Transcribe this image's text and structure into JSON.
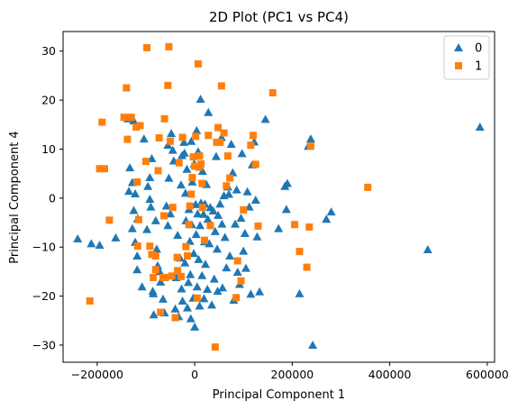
{
  "chart_data": {
    "type": "scatter",
    "title": "2D Plot (PC1 vs PC4)",
    "xlabel": "Principal Component 1",
    "ylabel": "Principal Component 4",
    "xlim": [
      -270000,
      615000
    ],
    "ylim": [
      -33.5,
      34
    ],
    "xticks": [
      -200000,
      0,
      200000,
      400000,
      600000
    ],
    "xtick_labels": [
      "−200000",
      "0",
      "200000",
      "400000",
      "600000"
    ],
    "yticks": [
      -30,
      -20,
      -10,
      0,
      10,
      20,
      30
    ],
    "ytick_labels": [
      "−30",
      "−20",
      "−10",
      "0",
      "10",
      "20",
      "30"
    ],
    "grid": false,
    "legend_position": "top-right",
    "series": [
      {
        "name": "0",
        "marker": "triangle",
        "color": "#1f77b4",
        "points": [
          [
            -240000,
            -8.3
          ],
          [
            -212000,
            -9.3
          ],
          [
            -195000,
            -9.6
          ],
          [
            -162000,
            -8.1
          ],
          [
            -128000,
            -6.2
          ],
          [
            -137000,
            16.2
          ],
          [
            -125000,
            15.8
          ],
          [
            -133000,
            6.2
          ],
          [
            -128000,
            3.2
          ],
          [
            -122000,
            0.9
          ],
          [
            -135000,
            1.4
          ],
          [
            -125000,
            -2.5
          ],
          [
            -117000,
            -4.2
          ],
          [
            -122000,
            -9.0
          ],
          [
            -118000,
            -11.8
          ],
          [
            -118000,
            -14.6
          ],
          [
            -108000,
            -18.1
          ],
          [
            -104000,
            12.1
          ],
          [
            -98000,
            -6.4
          ],
          [
            -96000,
            2.4
          ],
          [
            -92000,
            -0.2
          ],
          [
            -92000,
            4.2
          ],
          [
            -90000,
            -1.8
          ],
          [
            -88000,
            8.1
          ],
          [
            -86000,
            -19.0
          ],
          [
            -85000,
            -19.5
          ],
          [
            -84000,
            -23.8
          ],
          [
            -80000,
            -4.6
          ],
          [
            -78000,
            -10.4
          ],
          [
            -76000,
            -13.8
          ],
          [
            -72000,
            -15.0
          ],
          [
            -70000,
            -17.1
          ],
          [
            -65000,
            -20.6
          ],
          [
            -62000,
            -23.4
          ],
          [
            -58000,
            -1.6
          ],
          [
            -55000,
            -5.6
          ],
          [
            -55000,
            10.8
          ],
          [
            -53000,
            4.1
          ],
          [
            -50000,
            -3.2
          ],
          [
            -48000,
            13.2
          ],
          [
            -45000,
            9.8
          ],
          [
            -43000,
            7.6
          ],
          [
            -40000,
            -22.6
          ],
          [
            -38000,
            -16.2
          ],
          [
            -35000,
            -7.6
          ],
          [
            -33000,
            -24.2
          ],
          [
            -30000,
            -12.2
          ],
          [
            -28000,
            2.7
          ],
          [
            -27000,
            -18.5
          ],
          [
            -26000,
            8.7
          ],
          [
            -25000,
            -21.0
          ],
          [
            -22000,
            11.4
          ],
          [
            -21000,
            9.2
          ],
          [
            -20000,
            -13.2
          ],
          [
            -19000,
            1.0
          ],
          [
            -18000,
            -4.6
          ],
          [
            -16000,
            5.9
          ],
          [
            -15000,
            -22.4
          ],
          [
            -13000,
            -17.2
          ],
          [
            -12000,
            -2.3
          ],
          [
            -10000,
            -8.8
          ],
          [
            -9000,
            -15.6
          ],
          [
            -8000,
            -24.6
          ],
          [
            -7000,
            11.6
          ],
          [
            -6000,
            -5.4
          ],
          [
            -5000,
            3.3
          ],
          [
            -3000,
            -20.4
          ],
          [
            -2000,
            -11.3
          ],
          [
            -1000,
            7.0
          ],
          [
            0,
            -26.3
          ],
          [
            2000,
            -1.3
          ],
          [
            3000,
            -7.4
          ],
          [
            4000,
            13.8
          ],
          [
            5000,
            -18.1
          ],
          [
            6000,
            -3.2
          ],
          [
            7000,
            9.5
          ],
          [
            8000,
            -12.5
          ],
          [
            10000,
            -22.0
          ],
          [
            11000,
            -5.6
          ],
          [
            12000,
            20.2
          ],
          [
            13000,
            -1.0
          ],
          [
            15000,
            -15.8
          ],
          [
            16000,
            5.5
          ],
          [
            18000,
            -3.3
          ],
          [
            19000,
            -20.5
          ],
          [
            20000,
            -8.9
          ],
          [
            21000,
            -1.2
          ],
          [
            22000,
            -13.5
          ],
          [
            24000,
            2.8
          ],
          [
            26000,
            -18.6
          ],
          [
            27000,
            -4.3
          ],
          [
            28000,
            17.5
          ],
          [
            30000,
            -9.3
          ],
          [
            32000,
            -1.9
          ],
          [
            35000,
            -21.8
          ],
          [
            38000,
            -2.6
          ],
          [
            40000,
            -16.5
          ],
          [
            42000,
            -6.8
          ],
          [
            44000,
            8.5
          ],
          [
            46000,
            -10.4
          ],
          [
            47000,
            -19.0
          ],
          [
            48000,
            -3.5
          ],
          [
            52000,
            -1.2
          ],
          [
            55000,
            12.4
          ],
          [
            56000,
            -5.3
          ],
          [
            57000,
            -18.3
          ],
          [
            60000,
            0.5
          ],
          [
            62000,
            -8.0
          ],
          [
            65000,
            -14.2
          ],
          [
            68000,
            2.3
          ],
          [
            70000,
            0.8
          ],
          [
            72000,
            -11.8
          ],
          [
            75000,
            11.0
          ],
          [
            78000,
            5.2
          ],
          [
            80000,
            -20.8
          ],
          [
            83000,
            -5.3
          ],
          [
            86000,
            1.7
          ],
          [
            88000,
            -15.1
          ],
          [
            92000,
            -17.6
          ],
          [
            95000,
            -4.1
          ],
          [
            97000,
            9.1
          ],
          [
            100000,
            -10.8
          ],
          [
            103000,
            -7.2
          ],
          [
            105000,
            -14.3
          ],
          [
            108000,
            1.3
          ],
          [
            112000,
            -1.8
          ],
          [
            115000,
            -19.6
          ],
          [
            118000,
            6.8
          ],
          [
            122000,
            11.5
          ],
          [
            125000,
            -0.4
          ],
          [
            128000,
            -7.9
          ],
          [
            133000,
            -19.1
          ],
          [
            145000,
            16.1
          ],
          [
            172000,
            -6.2
          ],
          [
            185000,
            2.4
          ],
          [
            188000,
            -2.3
          ],
          [
            190000,
            3.0
          ],
          [
            215000,
            -19.5
          ],
          [
            233000,
            10.6
          ],
          [
            238000,
            12.1
          ],
          [
            242000,
            -30.0
          ],
          [
            270000,
            -4.3
          ],
          [
            280000,
            -2.8
          ],
          [
            478000,
            -10.5
          ],
          [
            585000,
            14.5
          ]
        ]
      },
      {
        "name": "1",
        "marker": "square",
        "color": "#ff7f0e",
        "points": [
          [
            -215000,
            -21.0
          ],
          [
            -195000,
            6.0
          ],
          [
            -190000,
            15.5
          ],
          [
            -185000,
            6.0
          ],
          [
            -175000,
            -4.5
          ],
          [
            -145000,
            16.5
          ],
          [
            -140000,
            22.5
          ],
          [
            -138000,
            12.0
          ],
          [
            -130000,
            16.5
          ],
          [
            -120000,
            14.5
          ],
          [
            -118000,
            3.3
          ],
          [
            -115000,
            -4.4
          ],
          [
            -117000,
            -9.8
          ],
          [
            -112000,
            14.8
          ],
          [
            -100000,
            7.5
          ],
          [
            -98000,
            30.7
          ],
          [
            -92000,
            -9.8
          ],
          [
            -88000,
            -11.5
          ],
          [
            -85000,
            -16.2
          ],
          [
            -80000,
            -11.8
          ],
          [
            -80000,
            -14.6
          ],
          [
            -75000,
            5.6
          ],
          [
            -73000,
            12.3
          ],
          [
            -70000,
            -23.3
          ],
          [
            -65000,
            -16.2
          ],
          [
            -63000,
            -3.6
          ],
          [
            -62000,
            16.2
          ],
          [
            -60000,
            -16.2
          ],
          [
            -55000,
            23.0
          ],
          [
            -53000,
            30.9
          ],
          [
            -50000,
            11.6
          ],
          [
            -47000,
            -15.9
          ],
          [
            -45000,
            -1.9
          ],
          [
            -40000,
            -24.4
          ],
          [
            -36000,
            -12.1
          ],
          [
            -35000,
            -14.8
          ],
          [
            -32000,
            7.2
          ],
          [
            -28000,
            -16.0
          ],
          [
            -25000,
            12.4
          ],
          [
            -18000,
            -9.9
          ],
          [
            -15000,
            -11.8
          ],
          [
            -12000,
            -5.4
          ],
          [
            -10000,
            -1.6
          ],
          [
            -7000,
            0.8
          ],
          [
            -5000,
            4.2
          ],
          [
            -3000,
            8.4
          ],
          [
            0,
            6.5
          ],
          [
            2000,
            12.6
          ],
          [
            5000,
            -20.4
          ],
          [
            7000,
            27.4
          ],
          [
            9000,
            6.3
          ],
          [
            10000,
            8.6
          ],
          [
            13000,
            7.0
          ],
          [
            15000,
            3.0
          ],
          [
            16000,
            -1.9
          ],
          [
            20000,
            -8.6
          ],
          [
            28000,
            12.8
          ],
          [
            32000,
            -5.6
          ],
          [
            42000,
            -30.4
          ],
          [
            45000,
            11.4
          ],
          [
            48000,
            14.4
          ],
          [
            52000,
            11.4
          ],
          [
            55000,
            22.9
          ],
          [
            60000,
            13.3
          ],
          [
            65000,
            2.5
          ],
          [
            68000,
            8.6
          ],
          [
            72000,
            4.1
          ],
          [
            85000,
            -20.3
          ],
          [
            88000,
            -12.8
          ],
          [
            95000,
            -16.9
          ],
          [
            100000,
            -2.4
          ],
          [
            115000,
            10.8
          ],
          [
            120000,
            12.8
          ],
          [
            125000,
            6.9
          ],
          [
            130000,
            -5.7
          ],
          [
            160000,
            21.5
          ],
          [
            205000,
            -5.4
          ],
          [
            215000,
            -10.9
          ],
          [
            230000,
            -14.1
          ],
          [
            235000,
            -5.9
          ],
          [
            238000,
            10.6
          ],
          [
            355000,
            2.2
          ]
        ]
      }
    ]
  }
}
